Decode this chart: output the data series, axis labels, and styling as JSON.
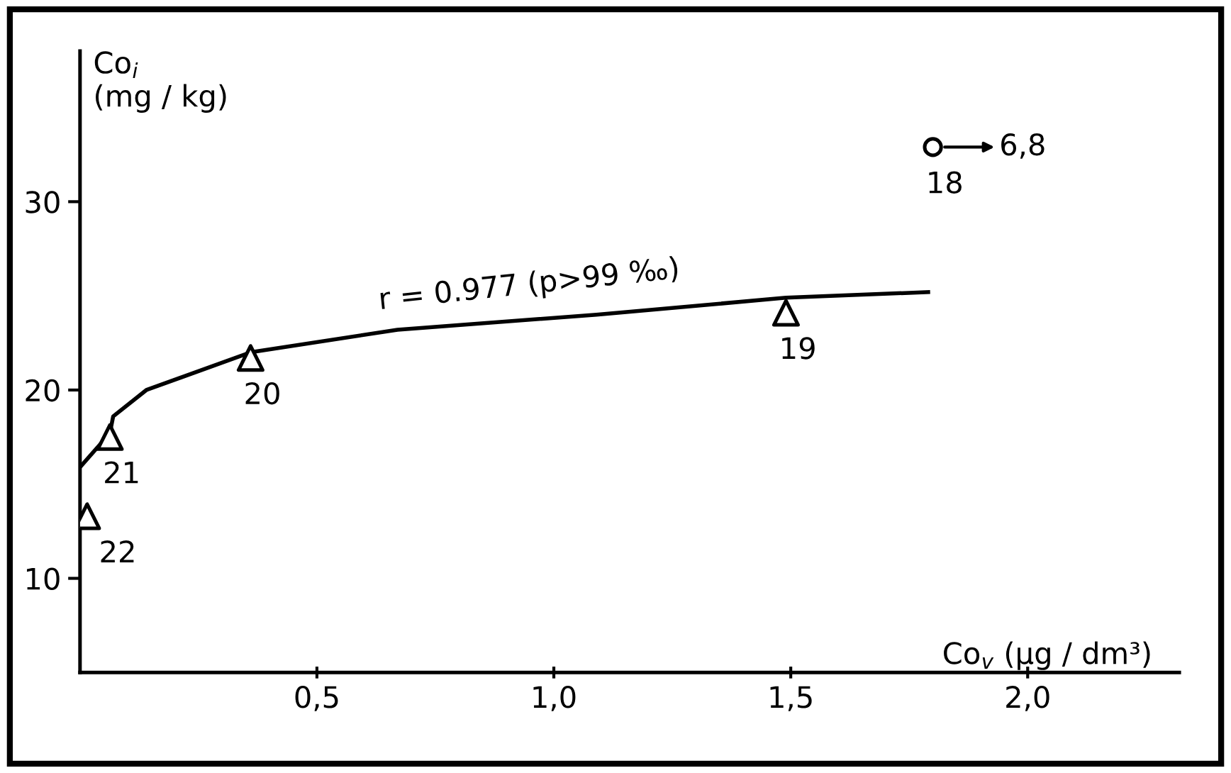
{
  "chart_data": {
    "type": "scatter",
    "xlabel": "Co$_{v}$ (µg / dm³)",
    "ylabel": "Co$_{i}$\n(mg / kg)",
    "xlim": [
      0,
      2.32
    ],
    "ylim": [
      5,
      38
    ],
    "xticks": [
      {
        "value": 0.5,
        "label": "0,5"
      },
      {
        "value": 1.0,
        "label": "1,0"
      },
      {
        "value": 1.5,
        "label": "1,5"
      },
      {
        "value": 2.0,
        "label": "2,0"
      }
    ],
    "yticks": [
      10,
      20,
      30
    ],
    "grid": false,
    "legend": false,
    "series": [
      {
        "type": "line",
        "color": "#000000",
        "marker": "none",
        "x": [
          0,
          0.063,
          0.07,
          0.14,
          0.36,
          0.67,
          1.09,
          1.49,
          1.79
        ],
        "values": [
          15.9,
          17.7,
          18.6,
          20.0,
          22.0,
          23.2,
          24.0,
          24.9,
          25.2
        ]
      },
      {
        "color": "#000000",
        "marker": "triangle",
        "x": [
          0.015,
          0.063,
          0.36,
          1.49
        ],
        "values": [
          13.3,
          17.5,
          21.7,
          24.1
        ]
      },
      {
        "color": "#000000",
        "marker": "circle",
        "x": [
          1.8
        ],
        "values": [
          32.9
        ]
      }
    ],
    "annotations": [
      "r = 0.977 (p>99 ‰)",
      {
        "text": "22",
        "x": 0.015,
        "y": 13.3
      },
      {
        "text": "21",
        "x": 0.063,
        "y": 17.5
      },
      {
        "text": "20",
        "x": 0.36,
        "y": 21.7
      },
      {
        "text": "19",
        "x": 1.49,
        "y": 24.1
      },
      {
        "text": "18",
        "x": 1.8,
        "y": 32.9
      },
      {
        "text": "6,8",
        "x": 1.8,
        "y": 32.9
      }
    ]
  }
}
